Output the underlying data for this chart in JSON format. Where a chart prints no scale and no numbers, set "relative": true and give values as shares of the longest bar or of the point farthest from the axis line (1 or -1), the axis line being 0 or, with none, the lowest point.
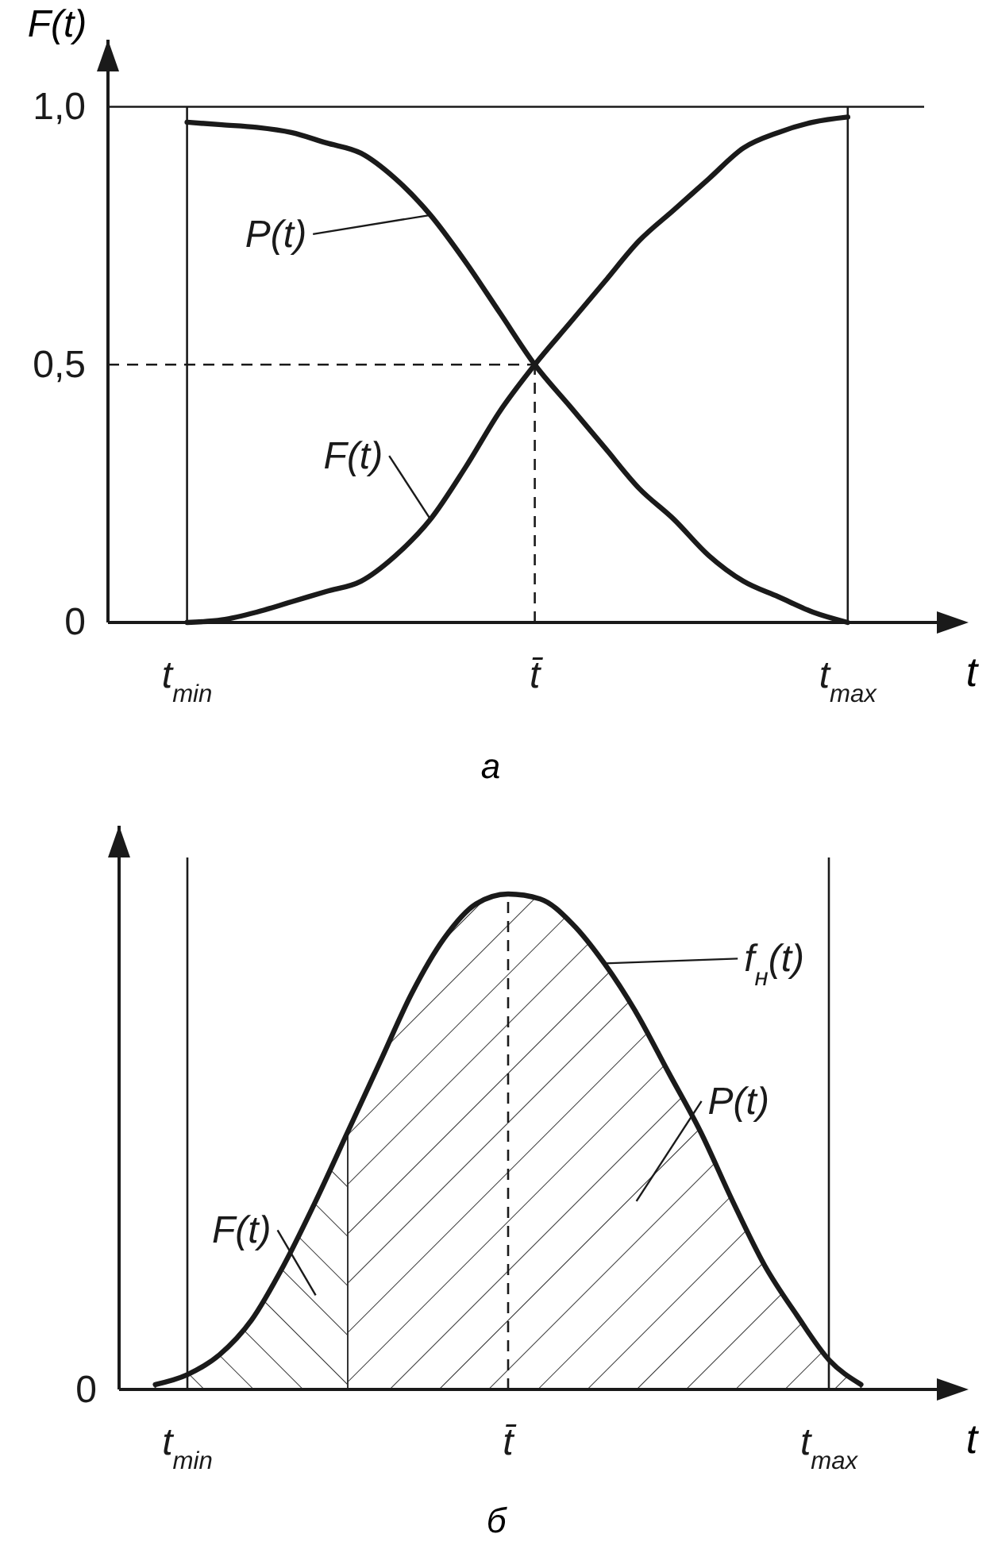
{
  "chart_data": [
    {
      "type": "line",
      "title": "а",
      "xlabel": "t",
      "ylabel": "F(t)",
      "categories": [
        null,
        null,
        "t$_{min}$",
        null,
        null,
        null,
        null,
        null,
        null,
        null,
        null,
        null,
        "t̄",
        null,
        null,
        null,
        null,
        null,
        null,
        null,
        null,
        "t$_{max}$",
        null,
        null,
        null
      ],
      "ylim": [
        0,
        1.13
      ],
      "yticks": [
        {
          "value": 0,
          "label": "0"
        },
        {
          "value": 0.5,
          "label": "0,5"
        },
        {
          "value": 1,
          "label": "1,0"
        }
      ],
      "series": [
        {
          "name": "P(t)",
          "color": "#1a1a1a",
          "values": [
            null,
            null,
            0.97,
            0.965,
            0.96,
            0.95,
            0.93,
            0.91,
            0.86,
            0.79,
            0.7,
            0.6,
            0.5,
            0.42,
            0.34,
            0.26,
            0.2,
            0.13,
            0.08,
            0.05,
            0.02,
            0,
            null,
            null,
            null
          ]
        },
        {
          "name": "F(t)",
          "color": "#1a1a1a",
          "values": [
            null,
            null,
            0,
            0.005,
            0.02,
            0.04,
            0.06,
            0.08,
            0.13,
            0.2,
            0.3,
            0.41,
            0.5,
            0.58,
            0.66,
            0.74,
            0.8,
            0.86,
            0.92,
            0.95,
            0.97,
            0.98,
            null,
            null,
            null
          ]
        }
      ],
      "ref_lines": [
        {
          "axis": "x",
          "value": "t$_{min}$",
          "color": "#1a1a1a"
        },
        {
          "axis": "x",
          "value": "t$_{max}$",
          "color": "#1a1a1a"
        },
        {
          "axis": "y",
          "value": 1,
          "color": "#1a1a1a"
        },
        {
          "axis": "y",
          "value": 0.5,
          "color": "#1a1a1a",
          "line_style": "dashed"
        },
        {
          "axis": "x",
          "value": "t̄",
          "color": "#1a1a1a",
          "line_style": "dashed"
        }
      ]
    },
    {
      "type": "line",
      "relative": true,
      "title": "б",
      "xlabel": "t",
      "categories": [
        null,
        null,
        "t$_{min}$",
        null,
        null,
        null,
        null,
        null,
        null,
        null,
        null,
        null,
        "t̄",
        null,
        null,
        null,
        null,
        null,
        null,
        null,
        null,
        null,
        "t$_{max}$",
        null,
        null,
        null,
        null
      ],
      "series": [
        {
          "name": "f$_{н}$(t)",
          "color": "#1a1a1a",
          "values": [
            null,
            0.01,
            0.03,
            0.07,
            0.14,
            0.25,
            0.38,
            0.52,
            0.66,
            0.8,
            0.91,
            0.98,
            1,
            0.99,
            0.94,
            0.86,
            0.76,
            0.64,
            0.52,
            0.38,
            0.25,
            0.15,
            0.06,
            0.01,
            null,
            null,
            null
          ]
        },
        {
          "name": "F(t)",
          "type": "area",
          "color": "#333333",
          "values": [
            null,
            0.01,
            0.03,
            0.07,
            0.14,
            0.25,
            0.38,
            0.52,
            null,
            null,
            null,
            null,
            null,
            null,
            null,
            null,
            null,
            null,
            null,
            null,
            null,
            null,
            null,
            null,
            null,
            null,
            null
          ]
        },
        {
          "name": "P(t)",
          "type": "area",
          "color": "#333333",
          "values": [
            null,
            null,
            null,
            null,
            null,
            null,
            null,
            0.52,
            0.66,
            0.8,
            0.91,
            0.98,
            1,
            0.99,
            0.94,
            0.86,
            0.76,
            0.64,
            0.52,
            0.38,
            0.25,
            0.15,
            0.06,
            0.01,
            null,
            null,
            null
          ]
        }
      ],
      "ref_lines": [
        {
          "axis": "x",
          "value": "t$_{min}$",
          "color": "#1a1a1a"
        },
        {
          "axis": "x",
          "value": "t$_{max}$",
          "color": "#1a1a1a"
        },
        {
          "axis": "x",
          "value": "t̄",
          "color": "#1a1a1a",
          "line_style": "dashed"
        }
      ],
      "annotations": [
        "0"
      ]
    }
  ]
}
